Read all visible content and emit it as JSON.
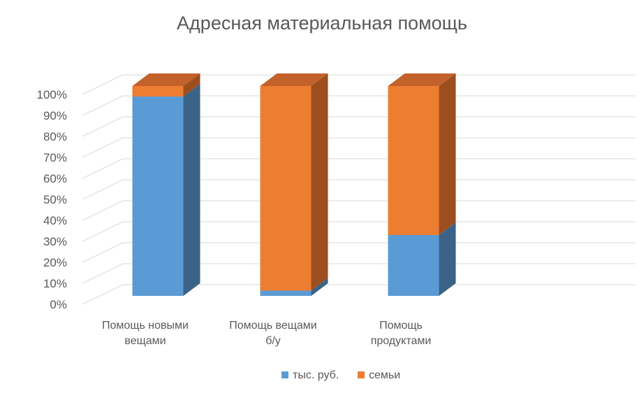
{
  "chart_data": {
    "type": "bar",
    "stacked": "percent",
    "three_d": true,
    "title": "Адресная материальная помощь",
    "categories": [
      "Помощь новыми вещами",
      "Помощь вещами б/у",
      "Помощь продуктами"
    ],
    "category_lines": [
      [
        "Помощь новыми",
        "вещами"
      ],
      [
        "Помощь вещами",
        "б/у"
      ],
      [
        "Помощь",
        "продуктами"
      ]
    ],
    "series": [
      {
        "name": "тыс. руб.",
        "values": [
          95,
          2.5,
          29
        ],
        "color": "#5B9BD5",
        "side_color": "#3A6387",
        "top_color": "#4A82B6"
      },
      {
        "name": "семьи",
        "values": [
          5,
          97.5,
          71
        ],
        "color": "#ED7D31",
        "side_color": "#9C4E1E",
        "top_color": "#C2612A"
      }
    ],
    "y_ticks": [
      "0%",
      "10%",
      "20%",
      "30%",
      "40%",
      "50%",
      "60%",
      "70%",
      "80%",
      "90%",
      "100%"
    ],
    "ylim": [
      0,
      100
    ],
    "y_unit": "%",
    "grid": true,
    "legend_position": "bottom"
  }
}
